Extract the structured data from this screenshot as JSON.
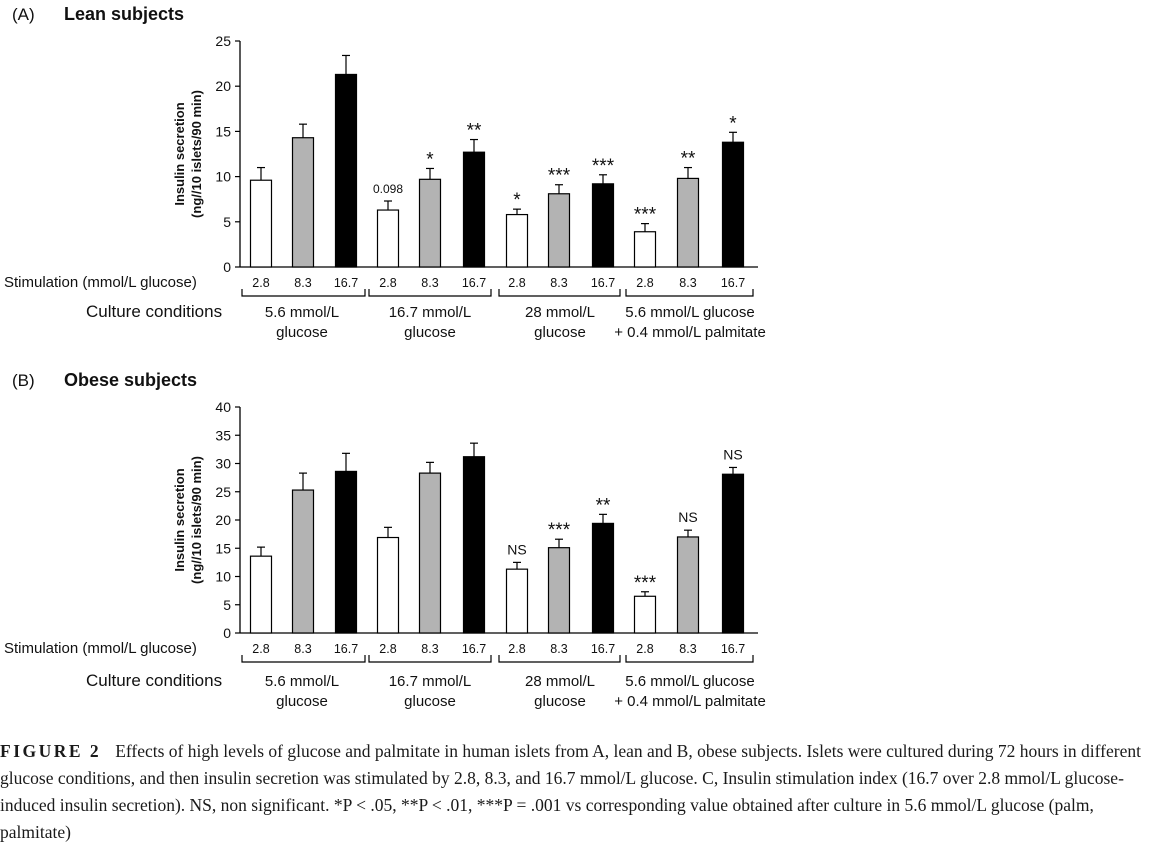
{
  "chart_data": [
    {
      "type": "bar",
      "panel_label": "(A)",
      "title": "Lean subjects",
      "ylabel": [
        "Insulin secretion",
        "(ng//10 islets/90 min)"
      ],
      "ylim": [
        0,
        25
      ],
      "yticks": [
        "0",
        "5",
        "10",
        "15",
        "20",
        "25"
      ],
      "stim_title": "Stimulation (mmol/L glucose)",
      "culture_title": "Culture conditions",
      "series": [
        {
          "name": "2.8",
          "color": "#ffffff"
        },
        {
          "name": "8.3",
          "color": "#b3b3b3"
        },
        {
          "name": "16.7",
          "color": "#000000"
        }
      ],
      "groups": [
        {
          "label": [
            "5.6 mmol/L",
            "glucose"
          ],
          "values": [
            9.6,
            14.3,
            21.3
          ],
          "errors": [
            1.4,
            1.5,
            2.1
          ],
          "annotations": [
            "",
            "",
            ""
          ]
        },
        {
          "label": [
            "16.7 mmol/L",
            "glucose"
          ],
          "values": [
            6.3,
            9.7,
            12.7
          ],
          "errors": [
            1.0,
            1.2,
            1.4
          ],
          "annotations": [
            "0.098",
            "*",
            "**"
          ]
        },
        {
          "label": [
            "28 mmol/L",
            "glucose"
          ],
          "values": [
            5.8,
            8.1,
            9.2
          ],
          "errors": [
            0.6,
            1.0,
            1.0
          ],
          "annotations": [
            "*",
            "***",
            "***"
          ]
        },
        {
          "label": [
            "5.6 mmol/L glucose",
            "+ 0.4 mmol/L palmitate"
          ],
          "values": [
            3.9,
            9.8,
            13.8
          ],
          "errors": [
            0.9,
            1.2,
            1.1
          ],
          "annotations": [
            "***",
            "**",
            "*"
          ]
        }
      ]
    },
    {
      "type": "bar",
      "panel_label": "(B)",
      "title": "Obese subjects",
      "ylabel": [
        "Insulin secretion",
        "(ng//10 islets/90 min)"
      ],
      "ylim": [
        0,
        40
      ],
      "yticks": [
        "0",
        "5",
        "10",
        "15",
        "20",
        "25",
        "30",
        "35",
        "40"
      ],
      "stim_title": "Stimulation (mmol/L glucose)",
      "culture_title": "Culture conditions",
      "series": [
        {
          "name": "2.8",
          "color": "#ffffff"
        },
        {
          "name": "8.3",
          "color": "#b3b3b3"
        },
        {
          "name": "16.7",
          "color": "#000000"
        }
      ],
      "groups": [
        {
          "label": [
            "5.6 mmol/L",
            "glucose"
          ],
          "values": [
            13.6,
            25.3,
            28.6
          ],
          "errors": [
            1.6,
            3.0,
            3.2
          ],
          "annotations": [
            "",
            "",
            ""
          ]
        },
        {
          "label": [
            "16.7 mmol/L",
            "glucose"
          ],
          "values": [
            16.9,
            28.3,
            31.2
          ],
          "errors": [
            1.8,
            1.9,
            2.4
          ],
          "annotations": [
            "",
            "",
            ""
          ]
        },
        {
          "label": [
            "28 mmol/L",
            "glucose"
          ],
          "values": [
            11.3,
            15.1,
            19.4
          ],
          "errors": [
            1.2,
            1.5,
            1.6
          ],
          "annotations": [
            "NS",
            "***",
            "**"
          ]
        },
        {
          "label": [
            "5.6 mmol/L glucose",
            "+ 0.4 mmol/L palmitate"
          ],
          "values": [
            6.5,
            17.0,
            28.1
          ],
          "errors": [
            0.8,
            1.2,
            1.2
          ],
          "annotations": [
            "***",
            "NS",
            "NS"
          ]
        }
      ]
    }
  ],
  "caption": {
    "lead": "FIGURE 2",
    "text": "Effects of high levels of glucose and palmitate in human islets from A, lean and B, obese subjects. Islets were cultured during 72 hours in different glucose conditions, and then insulin secretion was stimulated by 2.8, 8.3, and 16.7 mmol/L glucose. C, Insulin stimulation index (16.7 over 2.8 mmol/L glucose-induced insulin secretion). NS, non significant. *P < .05, **P < .01, ***P = .001 vs corresponding value obtained after culture in 5.6 mmol/L glucose (palm, palmitate)"
  }
}
